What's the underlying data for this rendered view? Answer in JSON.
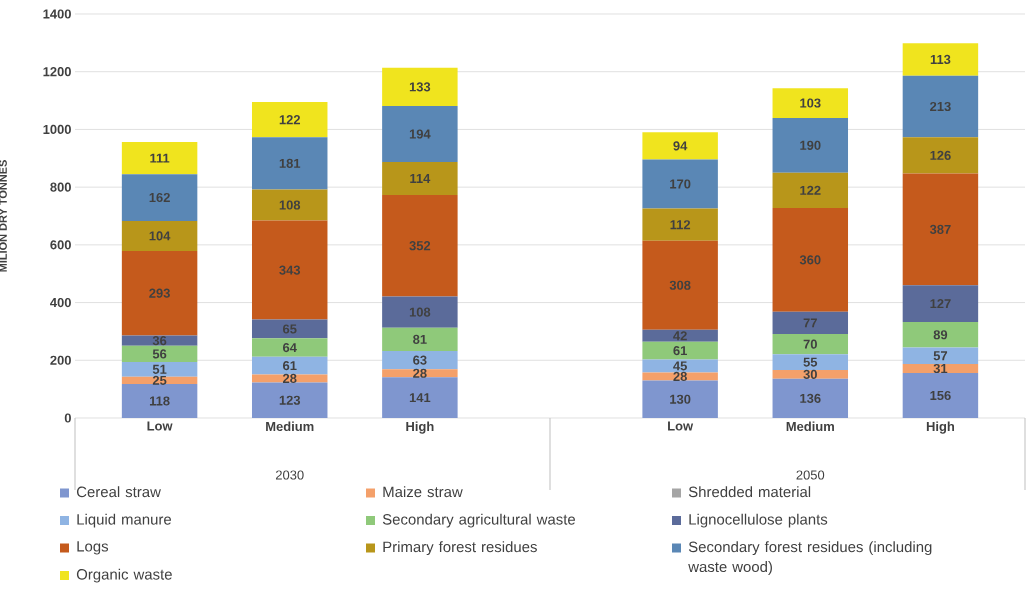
{
  "chart_data": {
    "type": "bar",
    "stacked": true,
    "ylabel": "MILION DRY TONNES",
    "categories": [
      "Low",
      "Medium",
      "High",
      null,
      "Low",
      "Medium",
      "High"
    ],
    "annotations": [
      "2030",
      "2050"
    ],
    "ylim": [
      0,
      1400
    ],
    "yticks": [
      0,
      200,
      400,
      600,
      800,
      1000,
      1200,
      1400
    ],
    "grid": "y",
    "legend": "bottom",
    "data_labels": true,
    "series": [
      {
        "name": "Cereal straw",
        "color": "#7f96cf",
        "values": [
          118,
          123,
          141,
          null,
          130,
          136,
          156
        ]
      },
      {
        "name": "Maize straw",
        "color": "#f4a06a",
        "values": [
          25,
          28,
          28,
          null,
          28,
          30,
          31
        ]
      },
      {
        "name": "Shredded material",
        "color": "#a5a5a5",
        "values": [
          null,
          null,
          null,
          null,
          null,
          null,
          null
        ]
      },
      {
        "name": "Liquid manure",
        "color": "#8fb4e3",
        "values": [
          51,
          61,
          63,
          null,
          45,
          55,
          57
        ]
      },
      {
        "name": "Secondary agricultural waste",
        "color": "#8fc97a",
        "values": [
          56,
          64,
          81,
          null,
          61,
          70,
          89
        ]
      },
      {
        "name": "Lignocellulose plants",
        "color": "#5b6b9a",
        "values": [
          36,
          65,
          108,
          null,
          42,
          77,
          127
        ]
      },
      {
        "name": "Logs",
        "color": "#c55a1c",
        "values": [
          293,
          343,
          352,
          null,
          308,
          360,
          387
        ]
      },
      {
        "name": "Primary forest residues",
        "color": "#b8961a",
        "values": [
          104,
          108,
          114,
          null,
          112,
          122,
          126
        ]
      },
      {
        "name": "Secondary forest residues (including waste wood)",
        "color": "#5a87b5",
        "values": [
          162,
          181,
          194,
          null,
          170,
          190,
          213
        ]
      },
      {
        "name": "Organic waste",
        "color": "#f0e41e",
        "values": [
          111,
          122,
          133,
          null,
          94,
          103,
          113
        ]
      }
    ]
  }
}
